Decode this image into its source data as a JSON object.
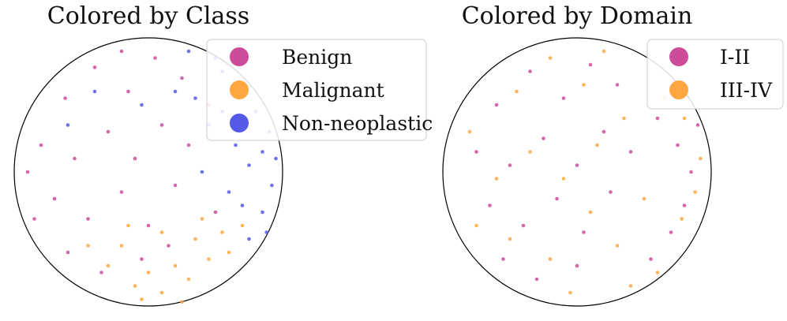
{
  "chart_data": [
    {
      "type": "scatter",
      "title": "Colored by Class",
      "xlabel": "",
      "ylabel": "",
      "xlim": [
        -1,
        1
      ],
      "ylim": [
        -1,
        1
      ],
      "grid": false,
      "legend_position": "top-right",
      "series": [
        {
          "name": "Benign",
          "color": "#cc4c9a",
          "points": [
            [
              -0.62,
              0.55
            ],
            [
              -0.4,
              0.78
            ],
            [
              -0.15,
              0.6
            ],
            [
              0.05,
              0.85
            ],
            [
              0.25,
              0.7
            ],
            [
              -0.8,
              0.2
            ],
            [
              -0.55,
              0.1
            ],
            [
              -0.3,
              0.3
            ],
            [
              -0.1,
              0.1
            ],
            [
              0.1,
              0.35
            ],
            [
              0.3,
              0.2
            ],
            [
              -0.7,
              -0.2
            ],
            [
              -0.45,
              -0.35
            ],
            [
              -0.2,
              -0.15
            ],
            [
              0.0,
              -0.4
            ],
            [
              0.2,
              -0.1
            ],
            [
              -0.6,
              -0.6
            ],
            [
              -0.35,
              -0.75
            ],
            [
              -0.05,
              -0.65
            ],
            [
              0.15,
              -0.55
            ],
            [
              -0.9,
              0.0
            ],
            [
              -0.85,
              -0.35
            ],
            [
              -0.2,
              0.9
            ],
            [
              0.45,
              0.5
            ],
            [
              0.5,
              -0.3
            ]
          ]
        },
        {
          "name": "Malignant",
          "color": "#ffa640",
          "points": [
            [
              -0.3,
              -0.7
            ],
            [
              -0.1,
              -0.85
            ],
            [
              0.1,
              -0.9
            ],
            [
              0.3,
              -0.8
            ],
            [
              0.45,
              -0.65
            ],
            [
              0.2,
              -0.7
            ],
            [
              0.0,
              -0.75
            ],
            [
              -0.2,
              -0.55
            ],
            [
              0.35,
              -0.5
            ],
            [
              0.55,
              -0.45
            ],
            [
              -0.05,
              -0.95
            ],
            [
              0.25,
              -0.97
            ],
            [
              0.6,
              -0.6
            ],
            [
              -0.15,
              -0.4
            ],
            [
              0.1,
              -0.45
            ],
            [
              0.4,
              -0.35
            ],
            [
              -0.45,
              -0.55
            ],
            [
              0.7,
              -0.4
            ]
          ]
        },
        {
          "name": "Non-neoplastic",
          "color": "#5658e8",
          "points": [
            [
              0.55,
              0.75
            ],
            [
              0.7,
              0.6
            ],
            [
              0.8,
              0.45
            ],
            [
              0.9,
              0.3
            ],
            [
              0.95,
              0.1
            ],
            [
              0.92,
              -0.1
            ],
            [
              0.85,
              -0.3
            ],
            [
              0.75,
              -0.5
            ],
            [
              0.65,
              0.2
            ],
            [
              0.75,
              0.05
            ],
            [
              0.6,
              -0.15
            ],
            [
              0.45,
              0.35
            ],
            [
              0.5,
              0.85
            ],
            [
              0.3,
              0.9
            ],
            [
              0.85,
              0.15
            ],
            [
              0.7,
              -0.25
            ],
            [
              0.35,
              0.55
            ],
            [
              0.2,
              0.6
            ],
            [
              -0.05,
              0.5
            ],
            [
              0.4,
              0.0
            ],
            [
              0.55,
              0.45
            ],
            [
              0.88,
              -0.45
            ],
            [
              -0.4,
              0.6
            ],
            [
              -0.6,
              0.35
            ]
          ]
        }
      ]
    },
    {
      "type": "scatter",
      "title": "Colored by Domain",
      "xlabel": "",
      "ylabel": "",
      "xlim": [
        -1,
        1
      ],
      "ylim": [
        -1,
        1
      ],
      "grid": false,
      "legend_position": "top-right",
      "series": [
        {
          "name": "I-II",
          "color": "#cc4c9a",
          "points": [
            [
              -0.6,
              0.5
            ],
            [
              -0.35,
              0.75
            ],
            [
              -0.1,
              0.55
            ],
            [
              0.1,
              0.8
            ],
            [
              0.3,
              0.65
            ],
            [
              -0.75,
              0.15
            ],
            [
              -0.5,
              0.05
            ],
            [
              -0.25,
              0.25
            ],
            [
              0.0,
              0.05
            ],
            [
              0.2,
              0.3
            ],
            [
              0.4,
              0.15
            ],
            [
              -0.65,
              -0.25
            ],
            [
              -0.4,
              -0.4
            ],
            [
              -0.15,
              -0.2
            ],
            [
              0.05,
              -0.45
            ],
            [
              0.25,
              -0.15
            ],
            [
              -0.55,
              -0.65
            ],
            [
              -0.3,
              -0.8
            ],
            [
              0.0,
              -0.7
            ],
            [
              0.6,
              0.4
            ],
            [
              0.75,
              0.2
            ],
            [
              0.85,
              0.0
            ],
            [
              0.8,
              -0.25
            ],
            [
              0.7,
              -0.45
            ],
            [
              0.55,
              -0.65
            ],
            [
              0.9,
              0.35
            ]
          ]
        },
        {
          "name": "III-IV",
          "color": "#ffa640",
          "points": [
            [
              -0.45,
              0.6
            ],
            [
              -0.2,
              0.85
            ],
            [
              0.05,
              0.65
            ],
            [
              0.2,
              0.9
            ],
            [
              -0.8,
              0.3
            ],
            [
              -0.6,
              -0.05
            ],
            [
              -0.35,
              0.15
            ],
            [
              -0.1,
              -0.05
            ],
            [
              0.15,
              0.2
            ],
            [
              0.35,
              0.4
            ],
            [
              -0.75,
              -0.4
            ],
            [
              -0.5,
              -0.5
            ],
            [
              -0.2,
              -0.65
            ],
            [
              0.1,
              -0.3
            ],
            [
              0.3,
              -0.55
            ],
            [
              0.5,
              -0.2
            ],
            [
              0.65,
              0.55
            ],
            [
              0.8,
              0.4
            ],
            [
              0.92,
              0.1
            ],
            [
              0.88,
              -0.15
            ],
            [
              0.78,
              -0.35
            ],
            [
              0.6,
              -0.75
            ],
            [
              0.4,
              -0.85
            ],
            [
              -0.05,
              -0.9
            ]
          ]
        }
      ]
    }
  ]
}
